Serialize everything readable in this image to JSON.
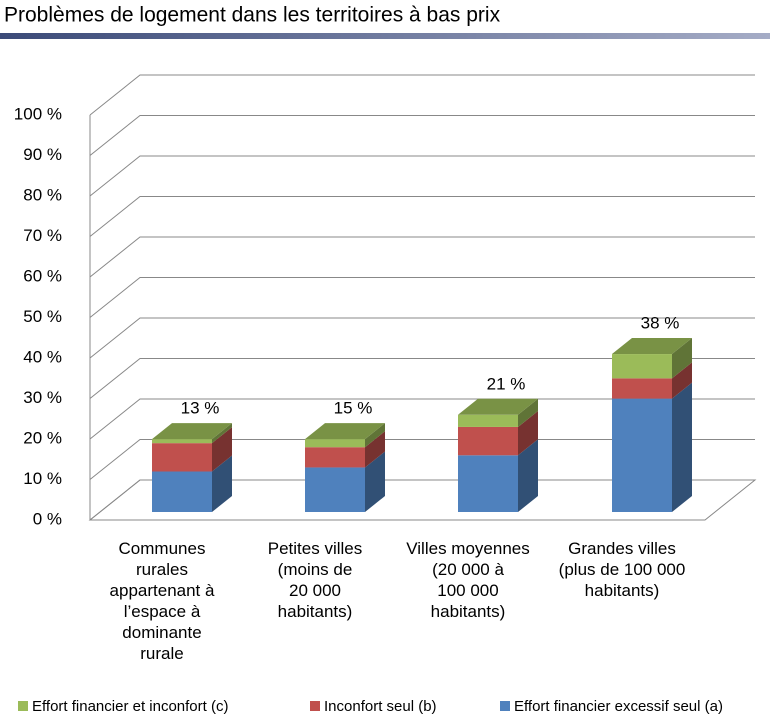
{
  "chart_data": {
    "type": "bar3d_stacked",
    "title": "Problèmes de logement dans les territoires à bas prix",
    "categories": [
      "Communes\nrurales\nappartenant à\nl’espace à\ndominante\nrurale",
      "Petites villes\n(moins de\n20 000\nhabitants)",
      "Villes moyennes\n(20 000 à\n100 000\nhabitants)",
      "Grandes villes\n(plus de 100 000\nhabitants)"
    ],
    "series": [
      {
        "name": "Effort financier et inconfort (c)",
        "color": "#9bbb59",
        "values": [
          1,
          2,
          3,
          6
        ]
      },
      {
        "name": "Inconfort seul (b)",
        "color": "#c0504d",
        "values": [
          7,
          5,
          7,
          5
        ]
      },
      {
        "name": "Effort financier excessif seul (a)",
        "color": "#4f81bd",
        "values": [
          10,
          11,
          14,
          28
        ]
      }
    ],
    "annotations": [
      "13 %",
      "15 %",
      "21 %",
      "38 %"
    ],
    "ylim": [
      0,
      100
    ],
    "yticks": [
      {
        "value": 0,
        "label": "0 %"
      },
      {
        "value": 10,
        "label": "10 %"
      },
      {
        "value": 20,
        "label": "20 %"
      },
      {
        "value": 30,
        "label": "30 %"
      },
      {
        "value": 40,
        "label": "40 %"
      },
      {
        "value": 50,
        "label": "50 %"
      },
      {
        "value": 60,
        "label": "60 %"
      },
      {
        "value": 70,
        "label": "70 %"
      },
      {
        "value": 80,
        "label": "80 %"
      },
      {
        "value": 90,
        "label": "90 %"
      },
      {
        "value": 100,
        "label": "100 %"
      }
    ],
    "grid": true,
    "legend": "bottom"
  }
}
